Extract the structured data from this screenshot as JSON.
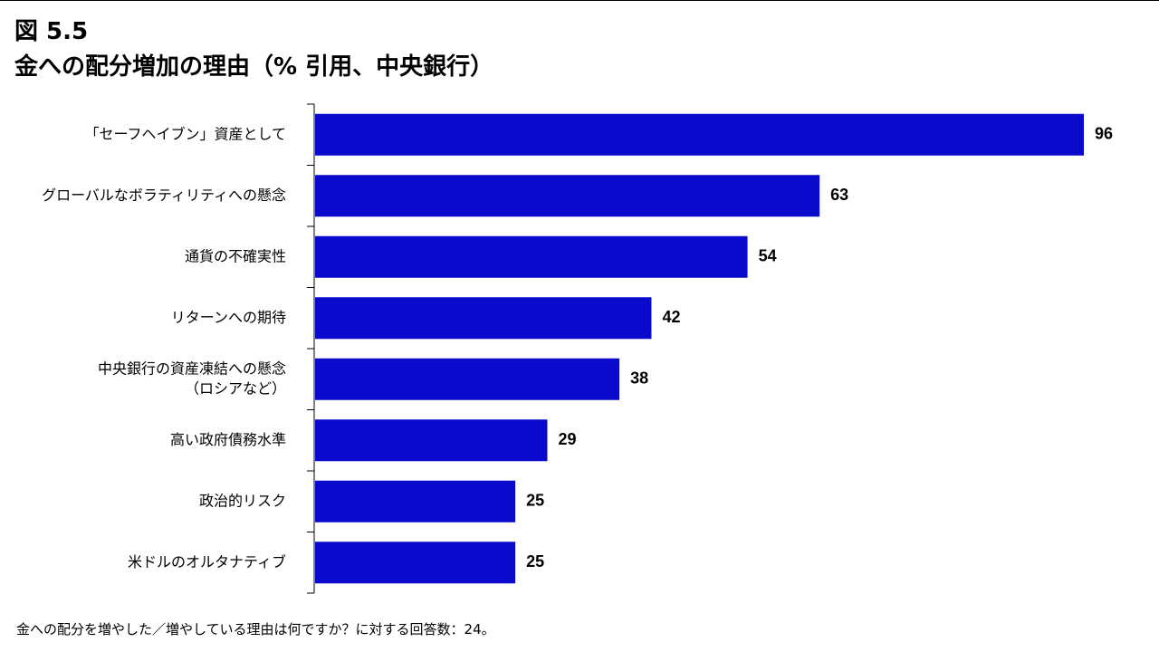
{
  "figure_label": "図 5.5",
  "title": "金への配分増加の理由（% 引用、中央銀行）",
  "footnote": "金への配分を増やした／増やしている理由は何ですか？に対する回答数：24。",
  "colors": {
    "bar": "#0a0acd",
    "axis": "#000000",
    "text": "#000000"
  },
  "chart_data": {
    "type": "bar",
    "orientation": "horizontal",
    "categories": [
      [
        "「セーフヘイブン」資産として"
      ],
      [
        "グローバルなボラティリティへの懸念"
      ],
      [
        "通貨の不確実性"
      ],
      [
        "リターンへの期待"
      ],
      [
        "中央銀行の資産凍結への懸念",
        "（ロシアなど）"
      ],
      [
        "高い政府債務水準"
      ],
      [
        "政治的リスク"
      ],
      [
        "米ドルのオルタナティブ"
      ]
    ],
    "values": [
      96,
      63,
      54,
      42,
      38,
      29,
      25,
      25
    ],
    "xlim": [
      0,
      96
    ],
    "data_labels": true,
    "grid": false,
    "legend": "none"
  }
}
